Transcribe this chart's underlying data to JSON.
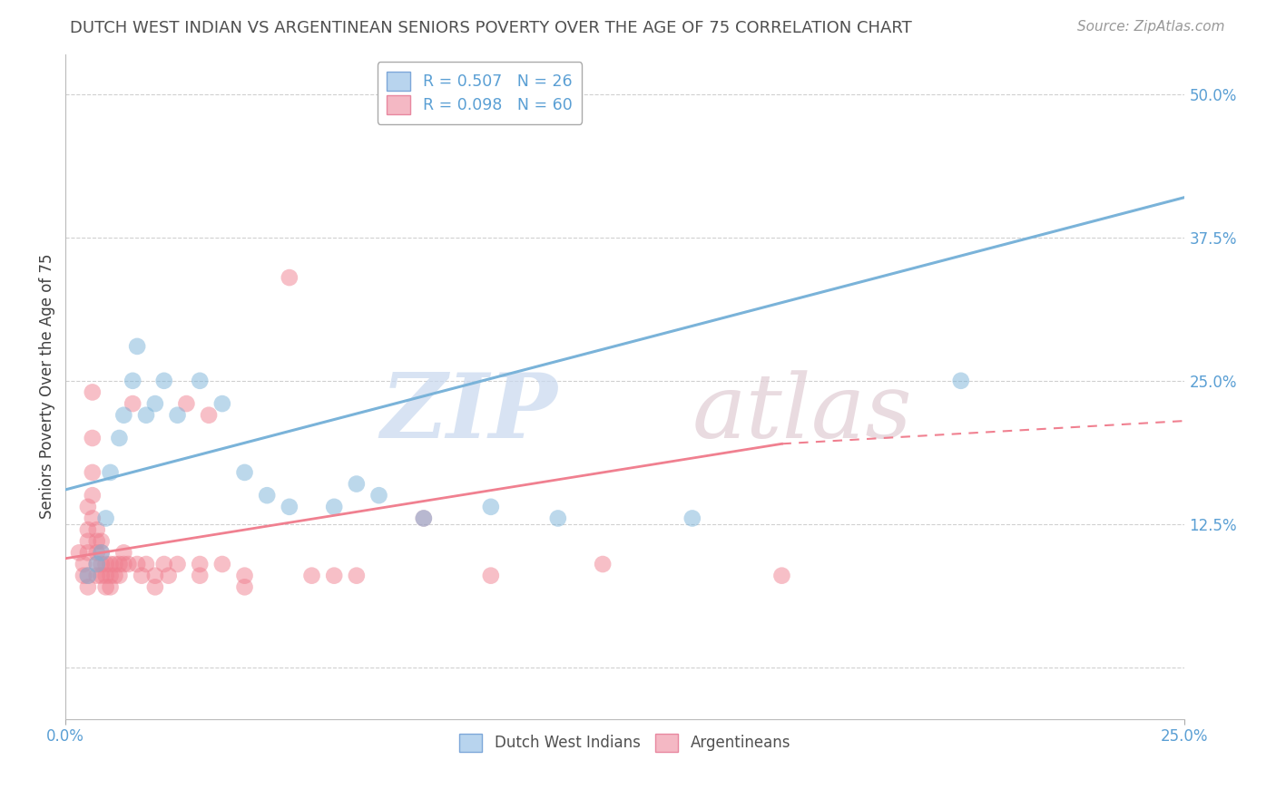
{
  "title": "DUTCH WEST INDIAN VS ARGENTINEAN SENIORS POVERTY OVER THE AGE OF 75 CORRELATION CHART",
  "source": "Source: ZipAtlas.com",
  "ylabel": "Seniors Poverty Over the Age of 75",
  "xlim": [
    0.0,
    0.25
  ],
  "ylim": [
    -0.045,
    0.535
  ],
  "yticks": [
    0.0,
    0.125,
    0.25,
    0.375,
    0.5
  ],
  "ytick_labels": [
    "",
    "12.5%",
    "25.0%",
    "37.5%",
    "50.0%"
  ],
  "xticks": [
    0.0,
    0.25
  ],
  "xtick_labels": [
    "0.0%",
    "25.0%"
  ],
  "legend_entries": [
    {
      "label": "R = 0.507   N = 26"
    },
    {
      "label": "R = 0.098   N = 60"
    }
  ],
  "bottom_legend": [
    "Dutch West Indians",
    "Argentineans"
  ],
  "blue_color": "#7ab3d9",
  "pink_color": "#f08090",
  "blue_scatter": [
    [
      0.005,
      0.08
    ],
    [
      0.007,
      0.09
    ],
    [
      0.008,
      0.1
    ],
    [
      0.009,
      0.13
    ],
    [
      0.01,
      0.17
    ],
    [
      0.012,
      0.2
    ],
    [
      0.013,
      0.22
    ],
    [
      0.015,
      0.25
    ],
    [
      0.016,
      0.28
    ],
    [
      0.018,
      0.22
    ],
    [
      0.02,
      0.23
    ],
    [
      0.022,
      0.25
    ],
    [
      0.025,
      0.22
    ],
    [
      0.03,
      0.25
    ],
    [
      0.035,
      0.23
    ],
    [
      0.04,
      0.17
    ],
    [
      0.045,
      0.15
    ],
    [
      0.05,
      0.14
    ],
    [
      0.06,
      0.14
    ],
    [
      0.065,
      0.16
    ],
    [
      0.07,
      0.15
    ],
    [
      0.08,
      0.13
    ],
    [
      0.095,
      0.14
    ],
    [
      0.11,
      0.13
    ],
    [
      0.14,
      0.13
    ],
    [
      0.2,
      0.25
    ]
  ],
  "pink_scatter": [
    [
      0.003,
      0.1
    ],
    [
      0.004,
      0.09
    ],
    [
      0.004,
      0.08
    ],
    [
      0.005,
      0.14
    ],
    [
      0.005,
      0.12
    ],
    [
      0.005,
      0.11
    ],
    [
      0.005,
      0.1
    ],
    [
      0.005,
      0.08
    ],
    [
      0.005,
      0.07
    ],
    [
      0.006,
      0.24
    ],
    [
      0.006,
      0.2
    ],
    [
      0.006,
      0.17
    ],
    [
      0.006,
      0.15
    ],
    [
      0.006,
      0.13
    ],
    [
      0.007,
      0.12
    ],
    [
      0.007,
      0.11
    ],
    [
      0.007,
      0.1
    ],
    [
      0.007,
      0.09
    ],
    [
      0.007,
      0.08
    ],
    [
      0.008,
      0.08
    ],
    [
      0.008,
      0.09
    ],
    [
      0.008,
      0.1
    ],
    [
      0.008,
      0.11
    ],
    [
      0.009,
      0.09
    ],
    [
      0.009,
      0.08
    ],
    [
      0.009,
      0.07
    ],
    [
      0.01,
      0.09
    ],
    [
      0.01,
      0.08
    ],
    [
      0.01,
      0.07
    ],
    [
      0.011,
      0.09
    ],
    [
      0.011,
      0.08
    ],
    [
      0.012,
      0.09
    ],
    [
      0.012,
      0.08
    ],
    [
      0.013,
      0.09
    ],
    [
      0.013,
      0.1
    ],
    [
      0.014,
      0.09
    ],
    [
      0.015,
      0.23
    ],
    [
      0.016,
      0.09
    ],
    [
      0.017,
      0.08
    ],
    [
      0.018,
      0.09
    ],
    [
      0.02,
      0.08
    ],
    [
      0.02,
      0.07
    ],
    [
      0.022,
      0.09
    ],
    [
      0.023,
      0.08
    ],
    [
      0.025,
      0.09
    ],
    [
      0.027,
      0.23
    ],
    [
      0.03,
      0.09
    ],
    [
      0.03,
      0.08
    ],
    [
      0.032,
      0.22
    ],
    [
      0.035,
      0.09
    ],
    [
      0.04,
      0.08
    ],
    [
      0.04,
      0.07
    ],
    [
      0.05,
      0.34
    ],
    [
      0.055,
      0.08
    ],
    [
      0.06,
      0.08
    ],
    [
      0.065,
      0.08
    ],
    [
      0.08,
      0.13
    ],
    [
      0.095,
      0.08
    ],
    [
      0.12,
      0.09
    ],
    [
      0.16,
      0.08
    ]
  ],
  "blue_line": {
    "x0": 0.0,
    "y0": 0.155,
    "x1": 0.25,
    "y1": 0.41
  },
  "pink_line_solid": {
    "x0": 0.0,
    "y0": 0.095,
    "x1": 0.16,
    "y1": 0.195
  },
  "pink_line_dash": {
    "x0": 0.16,
    "y0": 0.195,
    "x1": 0.25,
    "y1": 0.215
  },
  "watermark_zip": "ZIP",
  "watermark_atlas": "atlas",
  "background_color": "#ffffff",
  "grid_color": "#d0d0d0",
  "title_color": "#505050",
  "tick_color": "#5a9fd4"
}
